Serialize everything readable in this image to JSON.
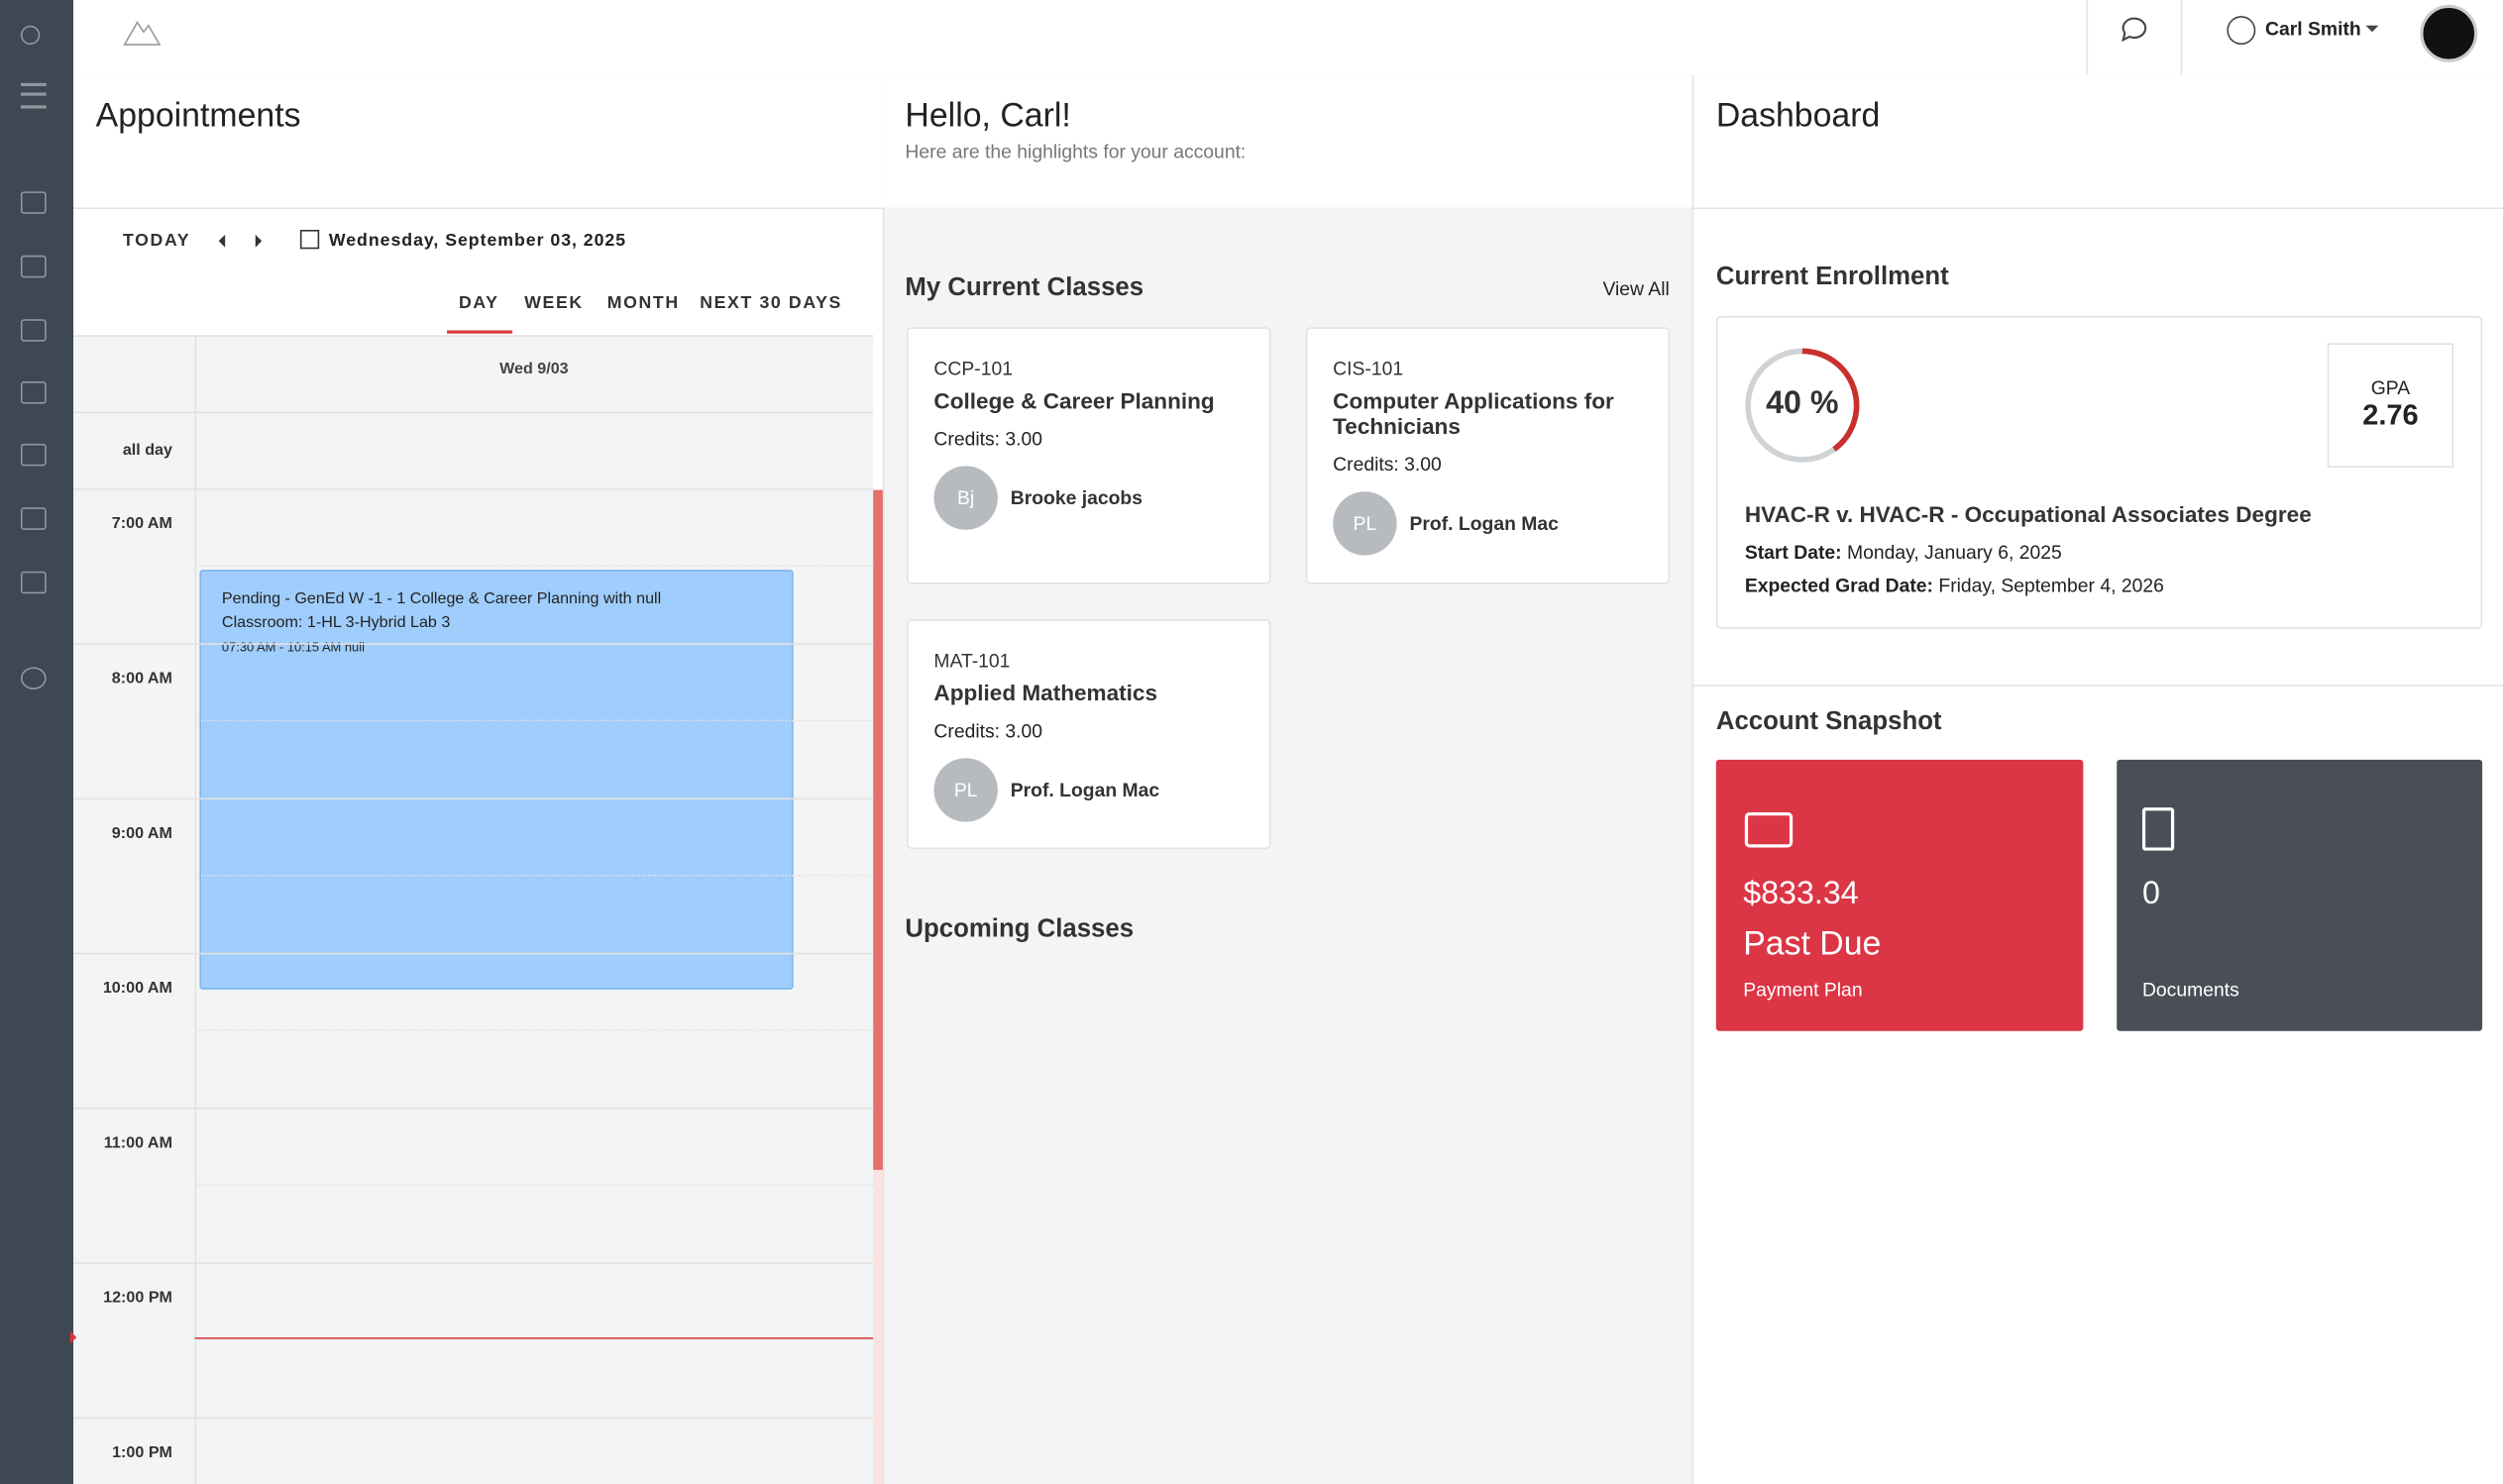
{
  "header": {
    "user": "Carl Smith"
  },
  "appointments": {
    "title": "Appointments",
    "today": "TODAY",
    "date": "Wednesday, September 03, 2025",
    "views": [
      "DAY",
      "WEEK",
      "MONTH",
      "NEXT 30 DAYS"
    ],
    "day_header": "Wed 9/03",
    "all_day": "all day",
    "times": [
      "7:00 AM",
      "8:00 AM",
      "9:00 AM",
      "10:00 AM",
      "11:00 AM",
      "12:00 PM",
      "1:00 PM"
    ],
    "event": [
      "Pending - GenEd W -1 - 1 College & Career Planning with null",
      "Classroom: 1-HL 3-Hybrid Lab 3",
      "07:30 AM - 10:15 AM null"
    ]
  },
  "greeting": {
    "title": "Hello, Carl!",
    "subtitle": "Here are the highlights for your account:"
  },
  "classes": {
    "title": "My Current Classes",
    "view_all": "View All",
    "upcoming": "Upcoming Classes",
    "items": [
      {
        "code": "CCP-101",
        "name": "College & Career Planning",
        "credits": "Credits: 3.00",
        "initials": "Bj",
        "instructor": "Brooke jacobs"
      },
      {
        "code": "CIS-101",
        "name": "Computer Applications for Technicians",
        "credits": "Credits: 3.00",
        "initials": "PL",
        "instructor": "Prof. Logan Mac"
      },
      {
        "code": "MAT-101",
        "name": "Applied Mathematics",
        "credits": "Credits: 3.00",
        "initials": "PL",
        "instructor": "Prof. Logan Mac"
      }
    ]
  },
  "dashboard": {
    "title": "Dashboard",
    "enrollment": {
      "title": "Current Enrollment",
      "progress": {
        "value": 40,
        "label": "40 %"
      },
      "gpa_label": "GPA",
      "gpa": "2.76",
      "program": "HVAC-R v. HVAC-R - Occupational Associates Degree",
      "start_label": "Start Date:",
      "start": "Monday, January 6, 2025",
      "grad_label": "Expected Grad Date:",
      "grad": "Friday, September 4, 2026"
    },
    "snapshot": {
      "title": "Account Snapshot",
      "payment_amount": "$833.34",
      "payment_status": "Past Due",
      "payment_label": "Payment Plan",
      "documents_count": "0",
      "documents_label": "Documents"
    }
  }
}
